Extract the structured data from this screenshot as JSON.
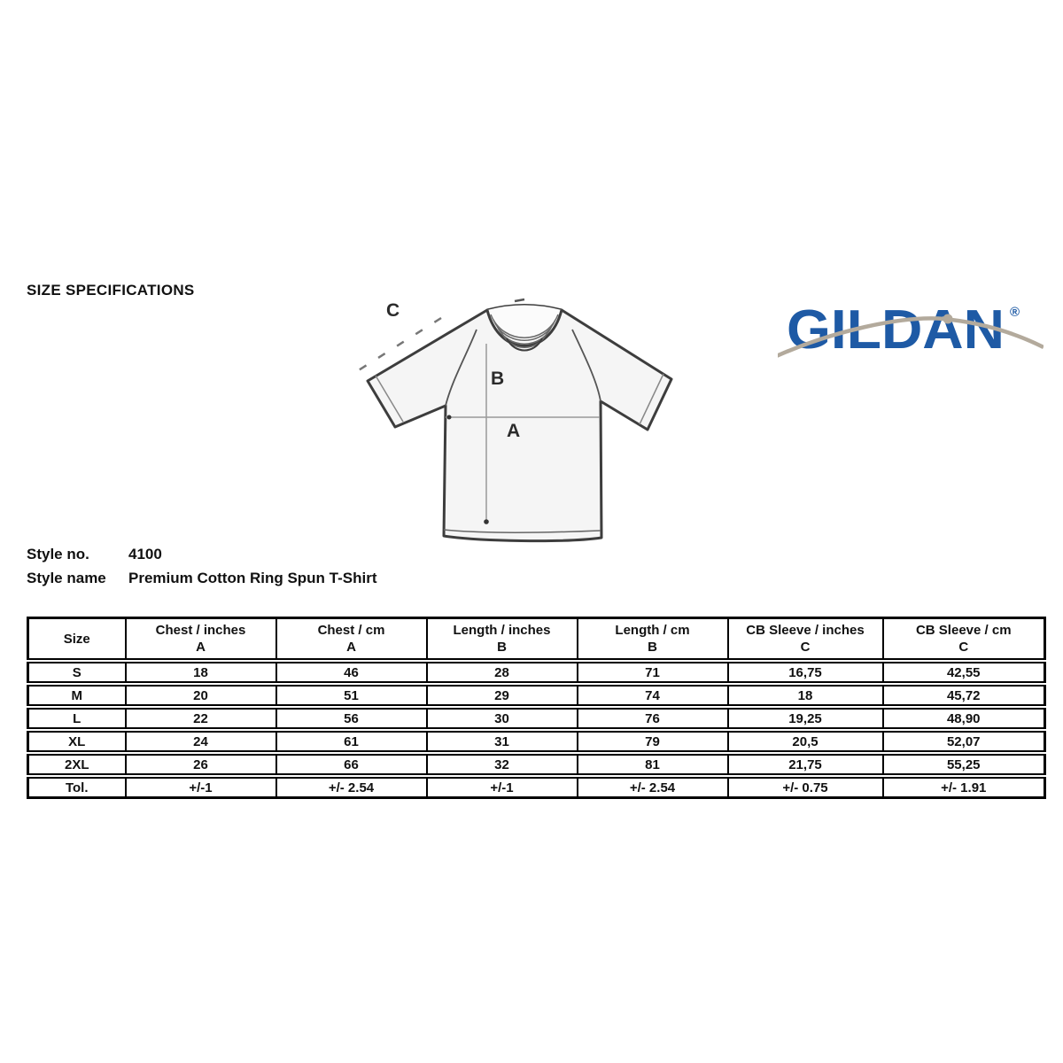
{
  "page": {
    "title": "SIZE SPECIFICATIONS"
  },
  "logo": {
    "text": "GILDAN",
    "registered": "®",
    "brand_color": "#1e5aa5",
    "swoosh_color": "#b3aa9c"
  },
  "style_info": {
    "no_label": "Style no.",
    "no_value": "4100",
    "name_label": "Style name",
    "name_value": "Premium Cotton Ring Spun T-Shirt"
  },
  "diagram": {
    "labels": {
      "a": "A",
      "b": "B",
      "c": "C"
    }
  },
  "size_table": {
    "columns": [
      {
        "line1": "Size",
        "line2": ""
      },
      {
        "line1": "Chest / inches",
        "line2": "A"
      },
      {
        "line1": "Chest / cm",
        "line2": "A"
      },
      {
        "line1": "Length / inches",
        "line2": "B"
      },
      {
        "line1": "Length / cm",
        "line2": "B"
      },
      {
        "line1": "CB Sleeve / inches",
        "line2": "C"
      },
      {
        "line1": "CB Sleeve / cm",
        "line2": "C"
      }
    ],
    "rows": [
      [
        "S",
        "18",
        "46",
        "28",
        "71",
        "16,75",
        "42,55"
      ],
      [
        "M",
        "20",
        "51",
        "29",
        "74",
        "18",
        "45,72"
      ],
      [
        "L",
        "22",
        "56",
        "30",
        "76",
        "19,25",
        "48,90"
      ],
      [
        "XL",
        "24",
        "61",
        "31",
        "79",
        "20,5",
        "52,07"
      ],
      [
        "2XL",
        "26",
        "66",
        "32",
        "81",
        "21,75",
        "55,25"
      ],
      [
        "Tol.",
        "+/-1",
        "+/- 2.54",
        "+/-1",
        "+/- 2.54",
        "+/- 0.75",
        "+/- 1.91"
      ]
    ]
  }
}
